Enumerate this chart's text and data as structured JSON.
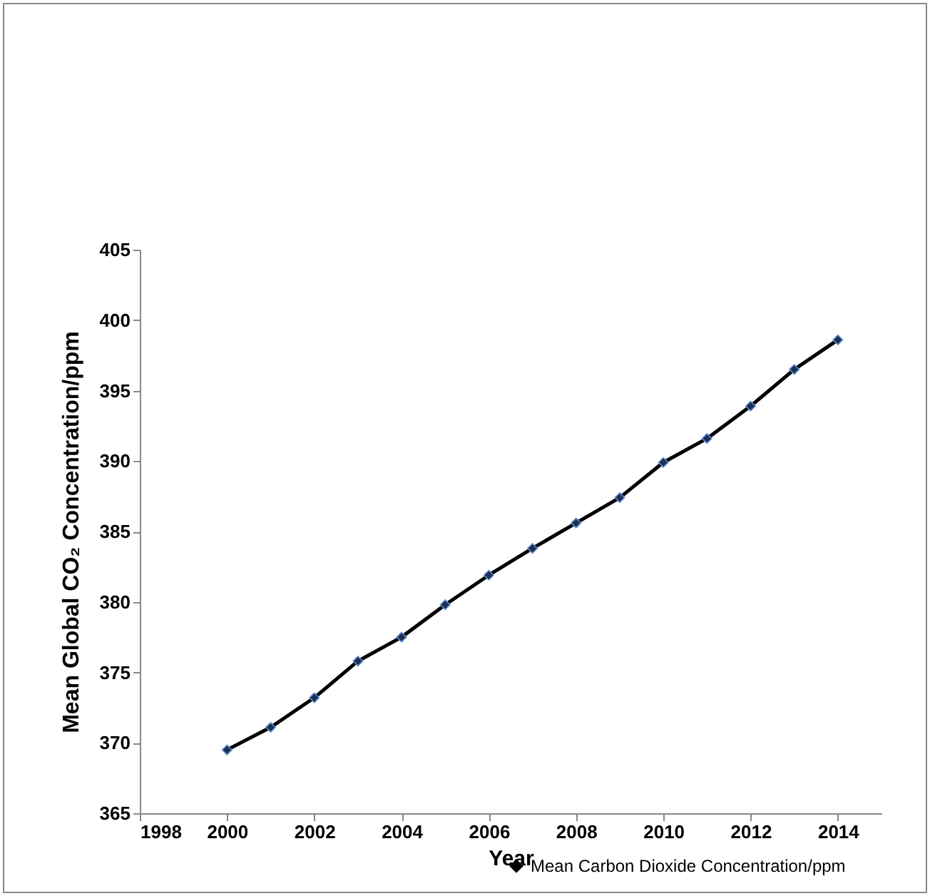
{
  "chart_data": {
    "type": "line",
    "xlabel": "Year",
    "ylabel": "Mean Global CO₂ Concentration/ppm",
    "x": [
      2000,
      2001,
      2002,
      2003,
      2004,
      2005,
      2006,
      2007,
      2008,
      2009,
      2010,
      2011,
      2012,
      2013,
      2014
    ],
    "series": [
      {
        "name": "Mean Carbon Dioxide Concentration/ppm",
        "color": "#000000",
        "values": [
          369.5,
          371.1,
          373.2,
          375.8,
          377.5,
          379.8,
          381.9,
          383.8,
          385.6,
          387.4,
          389.9,
          391.6,
          393.9,
          396.5,
          398.6
        ]
      }
    ],
    "xlim": [
      1998,
      2015
    ],
    "xticks": [
      1998,
      2000,
      2002,
      2004,
      2006,
      2008,
      2010,
      2012,
      2014
    ],
    "ylim": [
      365,
      405
    ],
    "yticks": [
      365,
      370,
      375,
      380,
      385,
      390,
      395,
      400,
      405
    ],
    "grid": false,
    "legend": "bottom right",
    "marker": "diamond",
    "line_style": "solid"
  }
}
